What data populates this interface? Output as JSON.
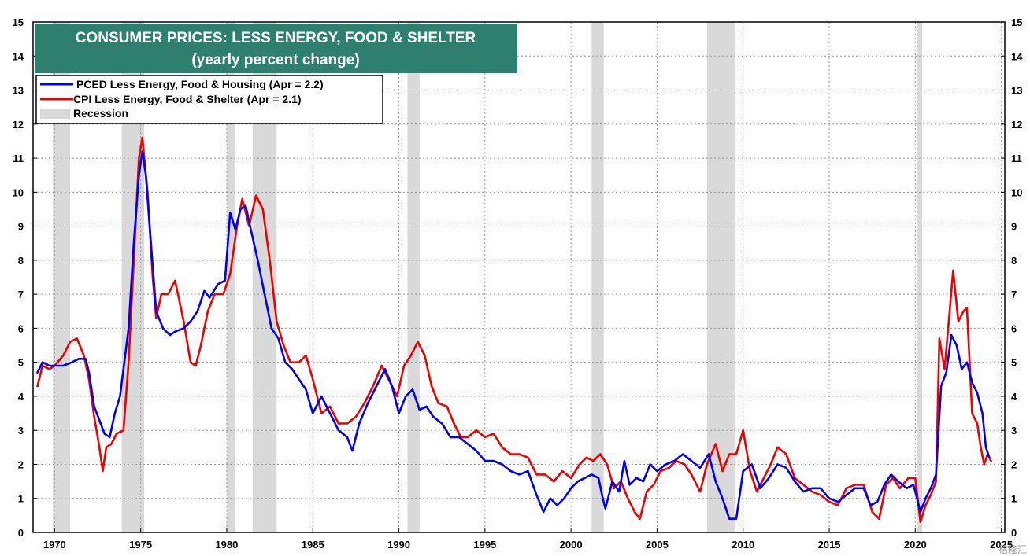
{
  "chart_data": {
    "type": "line",
    "title": "CONSUMER PRICES: LESS ENERGY, FOOD & SHELTER",
    "subtitle": "(yearly percent change)",
    "xlabel": "",
    "ylabel": "",
    "xlim": [
      1968.75,
      2025.2
    ],
    "ylim": [
      0,
      15
    ],
    "x_ticks": [
      1970,
      1975,
      1980,
      1985,
      1990,
      1995,
      2000,
      2005,
      2010,
      2015,
      2020,
      2025
    ],
    "x_tick_labels": [
      "1970",
      "1975",
      "1980",
      "1985",
      "1990",
      "1995",
      "2000",
      "2005",
      "2010",
      "2015",
      "2020",
      "2025"
    ],
    "y_ticks": [
      0,
      1,
      2,
      3,
      4,
      5,
      6,
      7,
      8,
      9,
      10,
      11,
      12,
      13,
      14,
      15
    ],
    "y_tick_labels": [
      "0",
      "1",
      "2",
      "3",
      "4",
      "5",
      "6",
      "7",
      "8",
      "9",
      "10",
      "11",
      "12",
      "13",
      "14",
      "15"
    ],
    "grid": true,
    "legend_position": "top-left",
    "colors": {
      "title_box": "#2e7f6e",
      "pced": "#0000ee",
      "cpi": "#ee0000",
      "recession": "#d9d9d9"
    },
    "legend": [
      {
        "label": "PCED Less Energy, Food & Housing (Apr = 2.2)",
        "kind": "line",
        "color": "#0000ee"
      },
      {
        "label": "CPI Less Energy, Food & Shelter (Apr = 2.1)",
        "kind": "line",
        "color": "#ee0000"
      },
      {
        "label": "Recession",
        "kind": "box",
        "color": "#d9d9d9"
      }
    ],
    "recessions": [
      [
        1969.9,
        1970.9
      ],
      [
        1973.9,
        1975.2
      ],
      [
        1980.0,
        1980.5
      ],
      [
        1981.5,
        1982.9
      ],
      [
        1990.5,
        1991.2
      ],
      [
        2001.2,
        2001.9
      ],
      [
        2007.9,
        2009.5
      ],
      [
        2020.1,
        2020.4
      ]
    ],
    "series": [
      {
        "name": "PCED Less Energy, Food & Housing",
        "color": "#0000ee",
        "points": [
          [
            1969.0,
            4.7
          ],
          [
            1969.3,
            5.0
          ],
          [
            1969.7,
            4.9
          ],
          [
            1970.0,
            4.9
          ],
          [
            1970.5,
            4.9
          ],
          [
            1971.0,
            5.0
          ],
          [
            1971.4,
            5.1
          ],
          [
            1971.8,
            5.1
          ],
          [
            1972.0,
            4.7
          ],
          [
            1972.3,
            3.7
          ],
          [
            1972.6,
            3.3
          ],
          [
            1972.9,
            2.9
          ],
          [
            1973.2,
            2.8
          ],
          [
            1973.5,
            3.5
          ],
          [
            1973.8,
            4.0
          ],
          [
            1974.0,
            4.8
          ],
          [
            1974.3,
            6.0
          ],
          [
            1974.6,
            8.5
          ],
          [
            1974.9,
            10.5
          ],
          [
            1975.1,
            11.2
          ],
          [
            1975.3,
            10.5
          ],
          [
            1975.6,
            8.5
          ],
          [
            1975.9,
            6.5
          ],
          [
            1976.3,
            6.0
          ],
          [
            1976.7,
            5.8
          ],
          [
            1977.0,
            5.9
          ],
          [
            1977.5,
            6.0
          ],
          [
            1977.9,
            6.2
          ],
          [
            1978.3,
            6.5
          ],
          [
            1978.7,
            7.1
          ],
          [
            1979.0,
            6.9
          ],
          [
            1979.5,
            7.3
          ],
          [
            1979.9,
            7.4
          ],
          [
            1980.2,
            9.4
          ],
          [
            1980.5,
            8.9
          ],
          [
            1980.8,
            9.5
          ],
          [
            1981.1,
            9.6
          ],
          [
            1981.4,
            8.9
          ],
          [
            1981.8,
            8.0
          ],
          [
            1982.2,
            7.0
          ],
          [
            1982.6,
            6.0
          ],
          [
            1983.0,
            5.7
          ],
          [
            1983.4,
            5.0
          ],
          [
            1983.8,
            4.8
          ],
          [
            1984.2,
            4.5
          ],
          [
            1984.6,
            4.2
          ],
          [
            1985.0,
            3.5
          ],
          [
            1985.5,
            4.0
          ],
          [
            1986.0,
            3.5
          ],
          [
            1986.5,
            3.0
          ],
          [
            1987.0,
            2.8
          ],
          [
            1987.3,
            2.4
          ],
          [
            1987.7,
            3.2
          ],
          [
            1988.2,
            3.8
          ],
          [
            1988.7,
            4.3
          ],
          [
            1989.2,
            4.8
          ],
          [
            1989.6,
            4.3
          ],
          [
            1990.0,
            3.5
          ],
          [
            1990.4,
            4.0
          ],
          [
            1990.8,
            4.2
          ],
          [
            1991.2,
            3.6
          ],
          [
            1991.6,
            3.7
          ],
          [
            1992.0,
            3.4
          ],
          [
            1992.5,
            3.2
          ],
          [
            1993.0,
            2.8
          ],
          [
            1993.5,
            2.8
          ],
          [
            1994.0,
            2.6
          ],
          [
            1994.5,
            2.4
          ],
          [
            1995.0,
            2.1
          ],
          [
            1995.5,
            2.1
          ],
          [
            1996.0,
            2.0
          ],
          [
            1996.5,
            1.8
          ],
          [
            1997.0,
            1.7
          ],
          [
            1997.5,
            1.8
          ],
          [
            1998.0,
            1.1
          ],
          [
            1998.4,
            0.6
          ],
          [
            1998.8,
            1.0
          ],
          [
            1999.2,
            0.8
          ],
          [
            1999.6,
            1.0
          ],
          [
            2000.0,
            1.3
          ],
          [
            2000.4,
            1.5
          ],
          [
            2000.8,
            1.6
          ],
          [
            2001.2,
            1.7
          ],
          [
            2001.6,
            1.6
          ],
          [
            2001.8,
            1.1
          ],
          [
            2002.0,
            0.7
          ],
          [
            2002.4,
            1.5
          ],
          [
            2002.8,
            1.2
          ],
          [
            2003.1,
            2.1
          ],
          [
            2003.4,
            1.4
          ],
          [
            2003.8,
            1.6
          ],
          [
            2004.2,
            1.5
          ],
          [
            2004.6,
            2.0
          ],
          [
            2005.0,
            1.8
          ],
          [
            2005.5,
            2.0
          ],
          [
            2006.0,
            2.1
          ],
          [
            2006.5,
            2.3
          ],
          [
            2007.0,
            2.1
          ],
          [
            2007.5,
            1.9
          ],
          [
            2008.0,
            2.3
          ],
          [
            2008.4,
            1.5
          ],
          [
            2008.8,
            1.0
          ],
          [
            2009.2,
            0.4
          ],
          [
            2009.6,
            0.4
          ],
          [
            2010.0,
            1.8
          ],
          [
            2010.5,
            2.0
          ],
          [
            2011.0,
            1.3
          ],
          [
            2011.5,
            1.6
          ],
          [
            2012.0,
            2.0
          ],
          [
            2012.5,
            1.9
          ],
          [
            2013.0,
            1.5
          ],
          [
            2013.5,
            1.2
          ],
          [
            2014.0,
            1.3
          ],
          [
            2014.5,
            1.3
          ],
          [
            2015.0,
            1.0
          ],
          [
            2015.5,
            0.9
          ],
          [
            2016.0,
            1.1
          ],
          [
            2016.5,
            1.3
          ],
          [
            2017.0,
            1.3
          ],
          [
            2017.4,
            0.8
          ],
          [
            2017.8,
            0.9
          ],
          [
            2018.2,
            1.4
          ],
          [
            2018.6,
            1.7
          ],
          [
            2019.0,
            1.5
          ],
          [
            2019.5,
            1.3
          ],
          [
            2019.9,
            1.4
          ],
          [
            2020.3,
            0.6
          ],
          [
            2020.6,
            1.0
          ],
          [
            2020.9,
            1.3
          ],
          [
            2021.2,
            1.7
          ],
          [
            2021.5,
            4.3
          ],
          [
            2021.8,
            4.7
          ],
          [
            2022.1,
            5.8
          ],
          [
            2022.4,
            5.5
          ],
          [
            2022.7,
            4.8
          ],
          [
            2023.0,
            5.0
          ],
          [
            2023.3,
            4.4
          ],
          [
            2023.6,
            4.1
          ],
          [
            2023.9,
            3.5
          ],
          [
            2024.1,
            2.5
          ],
          [
            2024.3,
            2.2
          ]
        ]
      },
      {
        "name": "CPI Less Energy, Food & Shelter",
        "color": "#ee0000",
        "points": [
          [
            1969.0,
            4.3
          ],
          [
            1969.3,
            4.9
          ],
          [
            1969.7,
            4.8
          ],
          [
            1970.0,
            4.9
          ],
          [
            1970.5,
            5.2
          ],
          [
            1970.9,
            5.6
          ],
          [
            1971.3,
            5.7
          ],
          [
            1971.7,
            5.2
          ],
          [
            1972.0,
            4.5
          ],
          [
            1972.3,
            3.4
          ],
          [
            1972.6,
            2.5
          ],
          [
            1972.8,
            1.8
          ],
          [
            1973.0,
            2.5
          ],
          [
            1973.3,
            2.6
          ],
          [
            1973.6,
            2.9
          ],
          [
            1974.0,
            3.0
          ],
          [
            1974.3,
            5.0
          ],
          [
            1974.6,
            8.0
          ],
          [
            1974.9,
            11.0
          ],
          [
            1975.1,
            11.6
          ],
          [
            1975.4,
            10.0
          ],
          [
            1975.7,
            7.5
          ],
          [
            1975.9,
            6.3
          ],
          [
            1976.2,
            7.0
          ],
          [
            1976.6,
            7.0
          ],
          [
            1977.0,
            7.4
          ],
          [
            1977.5,
            6.2
          ],
          [
            1977.9,
            5.0
          ],
          [
            1978.2,
            4.9
          ],
          [
            1978.5,
            5.5
          ],
          [
            1978.9,
            6.5
          ],
          [
            1979.3,
            7.0
          ],
          [
            1979.8,
            7.0
          ],
          [
            1980.2,
            7.6
          ],
          [
            1980.6,
            9.0
          ],
          [
            1980.9,
            9.8
          ],
          [
            1981.3,
            9.0
          ],
          [
            1981.7,
            9.9
          ],
          [
            1982.1,
            9.5
          ],
          [
            1982.5,
            8.0
          ],
          [
            1982.9,
            6.2
          ],
          [
            1983.3,
            5.5
          ],
          [
            1983.7,
            5.0
          ],
          [
            1984.2,
            5.0
          ],
          [
            1984.6,
            5.2
          ],
          [
            1985.0,
            4.5
          ],
          [
            1985.5,
            3.5
          ],
          [
            1986.0,
            3.7
          ],
          [
            1986.5,
            3.2
          ],
          [
            1987.0,
            3.2
          ],
          [
            1987.5,
            3.4
          ],
          [
            1988.0,
            3.8
          ],
          [
            1988.5,
            4.3
          ],
          [
            1989.0,
            4.9
          ],
          [
            1989.4,
            4.5
          ],
          [
            1989.9,
            4.0
          ],
          [
            1990.3,
            4.9
          ],
          [
            1990.7,
            5.2
          ],
          [
            1991.1,
            5.6
          ],
          [
            1991.5,
            5.2
          ],
          [
            1991.9,
            4.3
          ],
          [
            1992.3,
            3.8
          ],
          [
            1992.8,
            3.7
          ],
          [
            1993.2,
            3.2
          ],
          [
            1993.6,
            2.8
          ],
          [
            1994.0,
            2.8
          ],
          [
            1994.5,
            3.0
          ],
          [
            1995.0,
            2.8
          ],
          [
            1995.5,
            2.9
          ],
          [
            1996.0,
            2.5
          ],
          [
            1996.5,
            2.3
          ],
          [
            1997.0,
            2.3
          ],
          [
            1997.5,
            2.2
          ],
          [
            1998.0,
            1.7
          ],
          [
            1998.5,
            1.7
          ],
          [
            1999.0,
            1.5
          ],
          [
            1999.5,
            1.8
          ],
          [
            2000.0,
            1.6
          ],
          [
            2000.5,
            2.0
          ],
          [
            2000.9,
            2.2
          ],
          [
            2001.3,
            2.1
          ],
          [
            2001.7,
            2.3
          ],
          [
            2002.1,
            2.0
          ],
          [
            2002.5,
            1.3
          ],
          [
            2002.9,
            1.5
          ],
          [
            2003.3,
            1.0
          ],
          [
            2003.7,
            0.6
          ],
          [
            2004.0,
            0.4
          ],
          [
            2004.4,
            1.2
          ],
          [
            2004.8,
            1.4
          ],
          [
            2005.2,
            1.8
          ],
          [
            2005.7,
            1.9
          ],
          [
            2006.1,
            2.1
          ],
          [
            2006.6,
            2.0
          ],
          [
            2007.0,
            1.7
          ],
          [
            2007.5,
            1.2
          ],
          [
            2007.9,
            2.0
          ],
          [
            2008.4,
            2.6
          ],
          [
            2008.8,
            1.8
          ],
          [
            2009.2,
            2.3
          ],
          [
            2009.6,
            2.3
          ],
          [
            2010.0,
            3.0
          ],
          [
            2010.4,
            1.8
          ],
          [
            2010.8,
            1.2
          ],
          [
            2011.2,
            1.6
          ],
          [
            2011.6,
            2.0
          ],
          [
            2012.0,
            2.5
          ],
          [
            2012.5,
            2.3
          ],
          [
            2013.0,
            1.6
          ],
          [
            2013.5,
            1.4
          ],
          [
            2014.0,
            1.2
          ],
          [
            2014.5,
            1.1
          ],
          [
            2015.0,
            0.9
          ],
          [
            2015.5,
            0.8
          ],
          [
            2016.0,
            1.3
          ],
          [
            2016.5,
            1.4
          ],
          [
            2017.0,
            1.4
          ],
          [
            2017.5,
            0.6
          ],
          [
            2017.9,
            0.4
          ],
          [
            2018.3,
            1.4
          ],
          [
            2018.7,
            1.6
          ],
          [
            2019.1,
            1.3
          ],
          [
            2019.6,
            1.6
          ],
          [
            2020.0,
            1.6
          ],
          [
            2020.3,
            0.3
          ],
          [
            2020.6,
            0.8
          ],
          [
            2020.9,
            1.1
          ],
          [
            2021.2,
            1.5
          ],
          [
            2021.4,
            5.7
          ],
          [
            2021.7,
            4.8
          ],
          [
            2022.0,
            6.5
          ],
          [
            2022.2,
            7.7
          ],
          [
            2022.5,
            6.2
          ],
          [
            2022.8,
            6.5
          ],
          [
            2023.0,
            6.6
          ],
          [
            2023.3,
            3.5
          ],
          [
            2023.6,
            3.2
          ],
          [
            2023.8,
            2.5
          ],
          [
            2024.0,
            2.0
          ],
          [
            2024.2,
            2.3
          ],
          [
            2024.4,
            2.1
          ]
        ]
      }
    ]
  },
  "watermark": "格隆汇"
}
